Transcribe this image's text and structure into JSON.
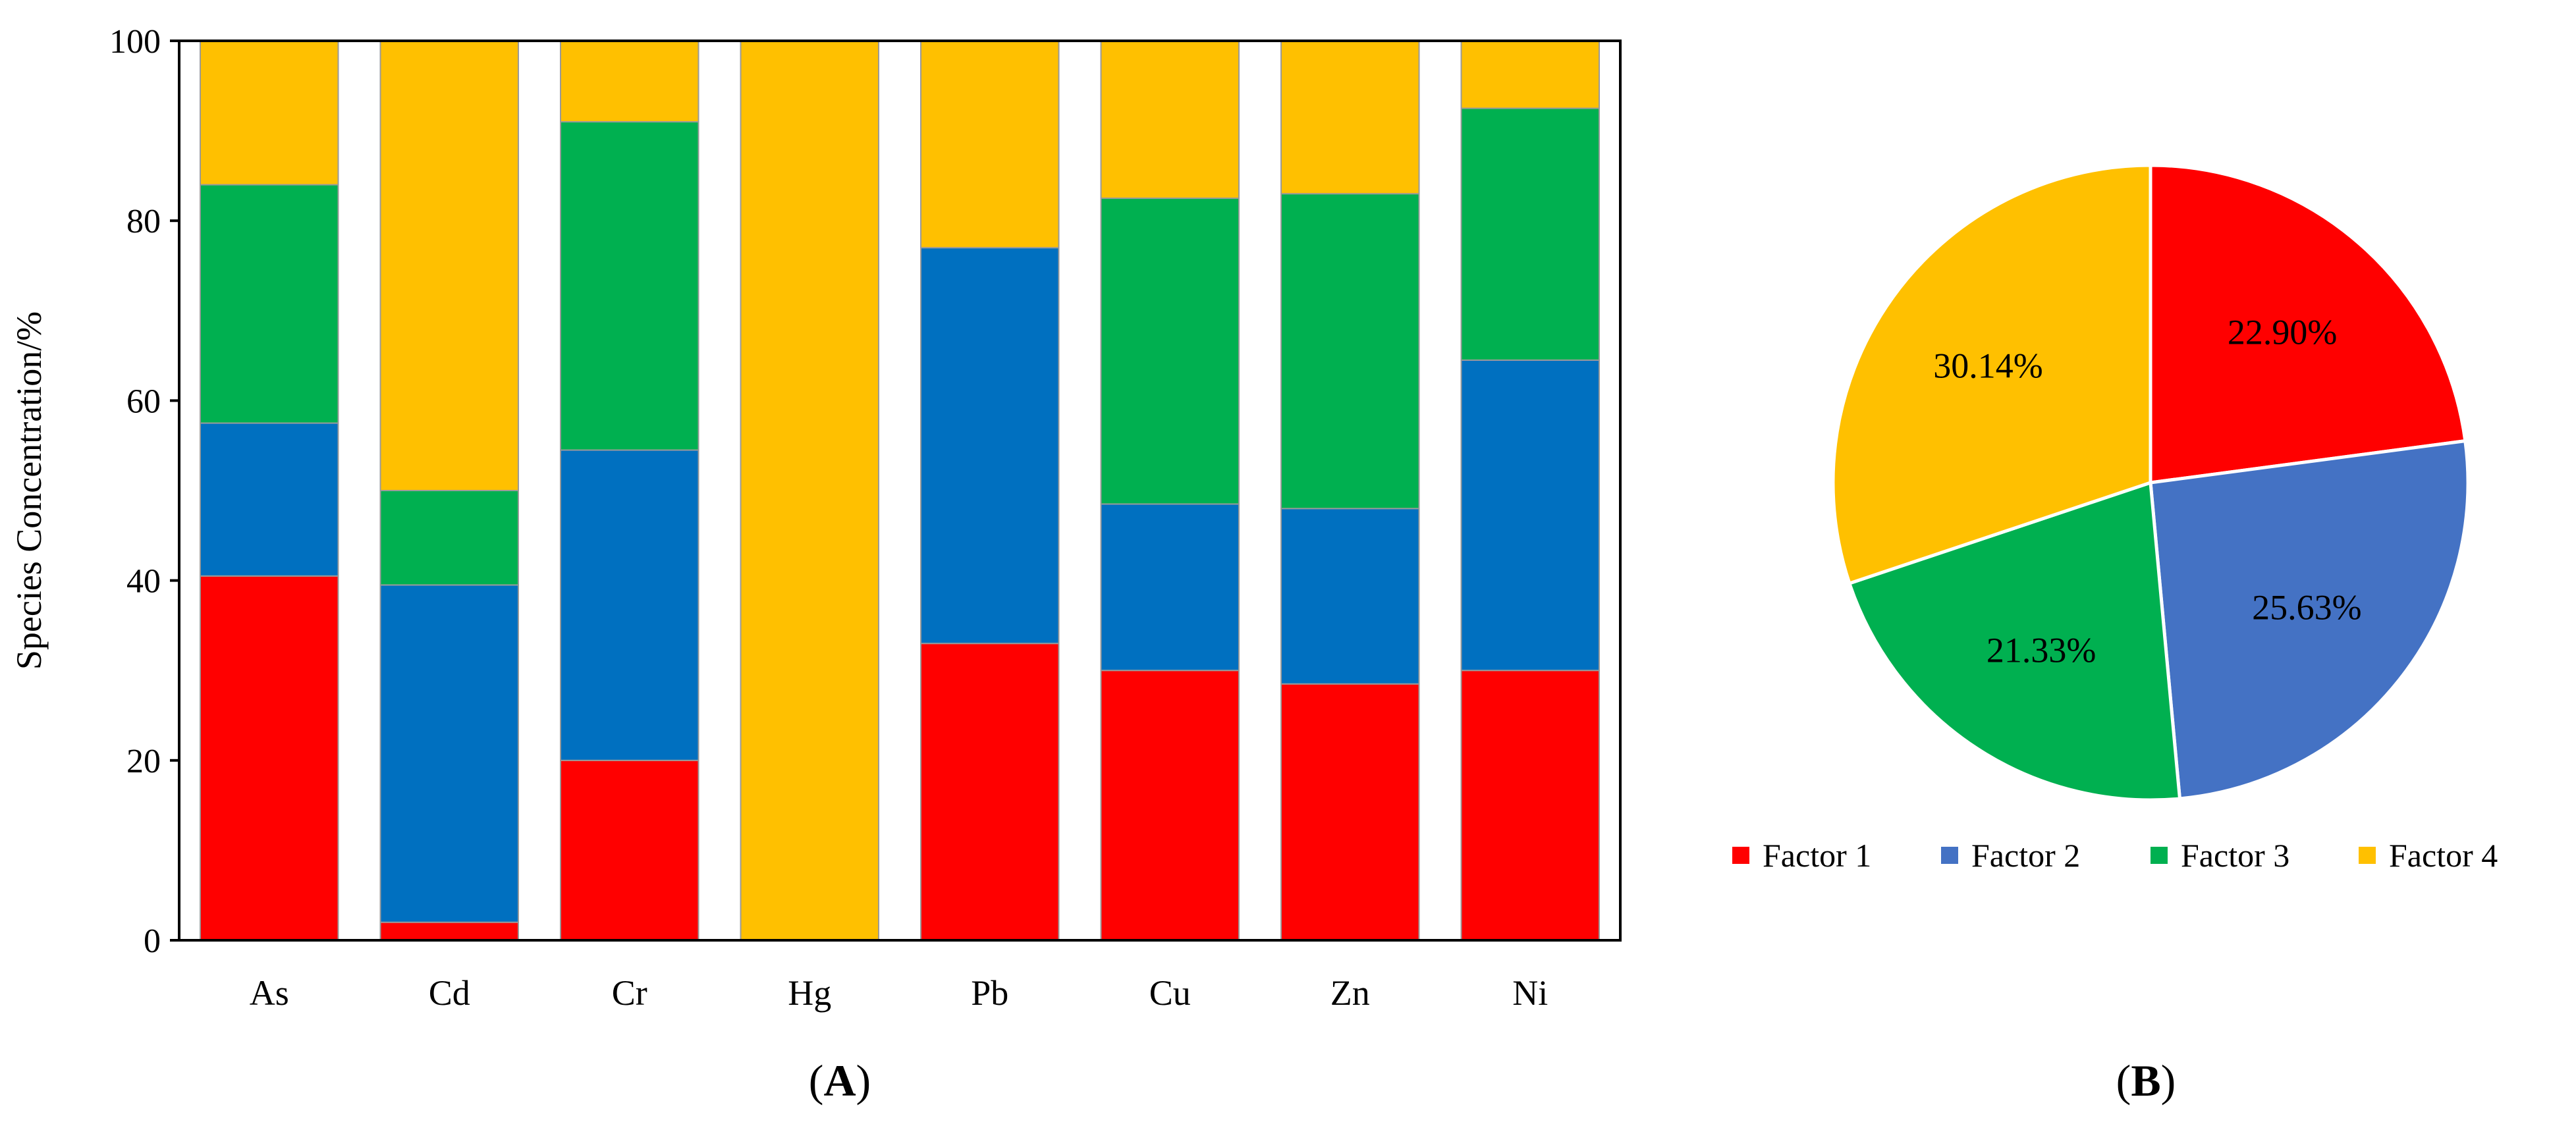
{
  "chart_data": [
    {
      "type": "bar",
      "stacked": true,
      "panel_label": "A",
      "ylabel": "Species Concentration/%",
      "xlabel": "",
      "ylim": [
        0,
        100
      ],
      "yticks": [
        "0",
        "20",
        "40",
        "60",
        "80",
        "100"
      ],
      "grid": false,
      "categories": [
        "As",
        "Cd",
        "Cr",
        "Hg",
        "Pb",
        "Cu",
        "Zn",
        "Ni"
      ],
      "series": [
        {
          "name": "Factor 1",
          "color": "#ff0000",
          "values": [
            40.5,
            2,
            20,
            0,
            33,
            30,
            28.5,
            30
          ]
        },
        {
          "name": "Factor 2",
          "color": "#0070c0",
          "values": [
            17,
            37.5,
            34.5,
            0,
            44,
            18.5,
            19.5,
            34.5
          ]
        },
        {
          "name": "Factor 3",
          "color": "#00b050",
          "values": [
            26.5,
            10.5,
            36.5,
            0,
            0,
            34,
            35,
            28
          ]
        },
        {
          "name": "Factor 4",
          "color": "#ffc000",
          "values": [
            16,
            50,
            9,
            100,
            23,
            17.5,
            17,
            7.5
          ]
        }
      ]
    },
    {
      "type": "pie",
      "panel_label": "B",
      "slices": [
        {
          "name": "Factor 1",
          "value": 22.9,
          "label": "22.90%",
          "color": "#ff0000"
        },
        {
          "name": "Factor 2",
          "value": 25.63,
          "label": "25.63%",
          "color": "#4472c4"
        },
        {
          "name": "Factor 3",
          "value": 21.33,
          "label": "21.33%",
          "color": "#00b050"
        },
        {
          "name": "Factor 4",
          "value": 30.14,
          "label": "30.14%",
          "color": "#ffc000"
        }
      ],
      "legend": {
        "position": "bottom",
        "entries": [
          {
            "label": "Factor 1",
            "color": "#ff0000"
          },
          {
            "label": "Factor 2",
            "color": "#4472c4"
          },
          {
            "label": "Factor 3",
            "color": "#00b050"
          },
          {
            "label": "Factor 4",
            "color": "#ffc000"
          }
        ]
      }
    }
  ]
}
